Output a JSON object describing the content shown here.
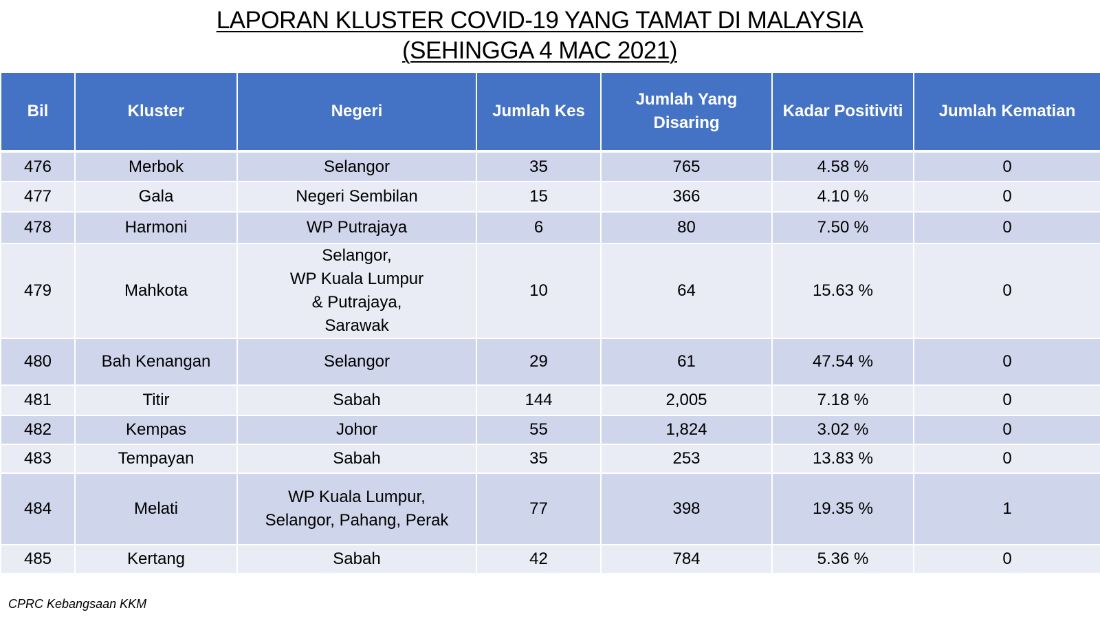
{
  "title": {
    "line1": "LAPORAN KLUSTER COVID-19 YANG TAMAT DI MALAYSIA",
    "line2": "(SEHINGGA 4 MAC 2021)"
  },
  "table": {
    "headers": {
      "bil": "Bil",
      "kluster": "Kluster",
      "negeri": "Negeri",
      "jumlah_kes": "Jumlah Kes",
      "jumlah_disaring_1": "Jumlah Yang",
      "jumlah_disaring_2": "Disaring",
      "kadar_positiviti": "Kadar Positiviti",
      "jumlah_kematian": "Jumlah Kematian"
    },
    "rows": [
      {
        "bil": "476",
        "kluster": "Merbok",
        "negeri": [
          "Selangor"
        ],
        "kes": "35",
        "disaring": "765",
        "positiviti": "4.58 %",
        "kematian": "0"
      },
      {
        "bil": "477",
        "kluster": "Gala",
        "negeri": [
          "Negeri Sembilan"
        ],
        "kes": "15",
        "disaring": "366",
        "positiviti": "4.10 %",
        "kematian": "0"
      },
      {
        "bil": "478",
        "kluster": "Harmoni",
        "negeri": [
          "WP Putrajaya"
        ],
        "kes": "6",
        "disaring": "80",
        "positiviti": "7.50 %",
        "kematian": "0"
      },
      {
        "bil": "479",
        "kluster": "Mahkota",
        "negeri": [
          "Selangor,",
          "WP Kuala Lumpur",
          "& Putrajaya,",
          "Sarawak"
        ],
        "kes": "10",
        "disaring": "64",
        "positiviti": "15.63 %",
        "kematian": "0"
      },
      {
        "bil": "480",
        "kluster": "Bah Kenangan",
        "negeri": [
          "Selangor"
        ],
        "kes": "29",
        "disaring": "61",
        "positiviti": "47.54 %",
        "kematian": "0"
      },
      {
        "bil": "481",
        "kluster": "Titir",
        "negeri": [
          "Sabah"
        ],
        "kes": "144",
        "disaring": "2,005",
        "positiviti": "7.18 %",
        "kematian": "0"
      },
      {
        "bil": "482",
        "kluster": "Kempas",
        "negeri": [
          "Johor"
        ],
        "kes": "55",
        "disaring": "1,824",
        "positiviti": "3.02 %",
        "kematian": "0"
      },
      {
        "bil": "483",
        "kluster": "Tempayan",
        "negeri": [
          "Sabah"
        ],
        "kes": "35",
        "disaring": "253",
        "positiviti": "13.83 %",
        "kematian": "0"
      },
      {
        "bil": "484",
        "kluster": "Melati",
        "negeri": [
          "WP Kuala Lumpur,",
          "Selangor, Pahang, Perak"
        ],
        "kes": "77",
        "disaring": "398",
        "positiviti": "19.35 %",
        "kematian": "1"
      },
      {
        "bil": "485",
        "kluster": "Kertang",
        "negeri": [
          "Sabah"
        ],
        "kes": "42",
        "disaring": "784",
        "positiviti": "5.36 %",
        "kematian": "0"
      }
    ]
  },
  "footer": {
    "source": "CPRC Kebangsaan KKM"
  },
  "colors": {
    "header": "#4472c4",
    "row_dark": "#cfd5ea",
    "row_light": "#e9ebf5"
  }
}
